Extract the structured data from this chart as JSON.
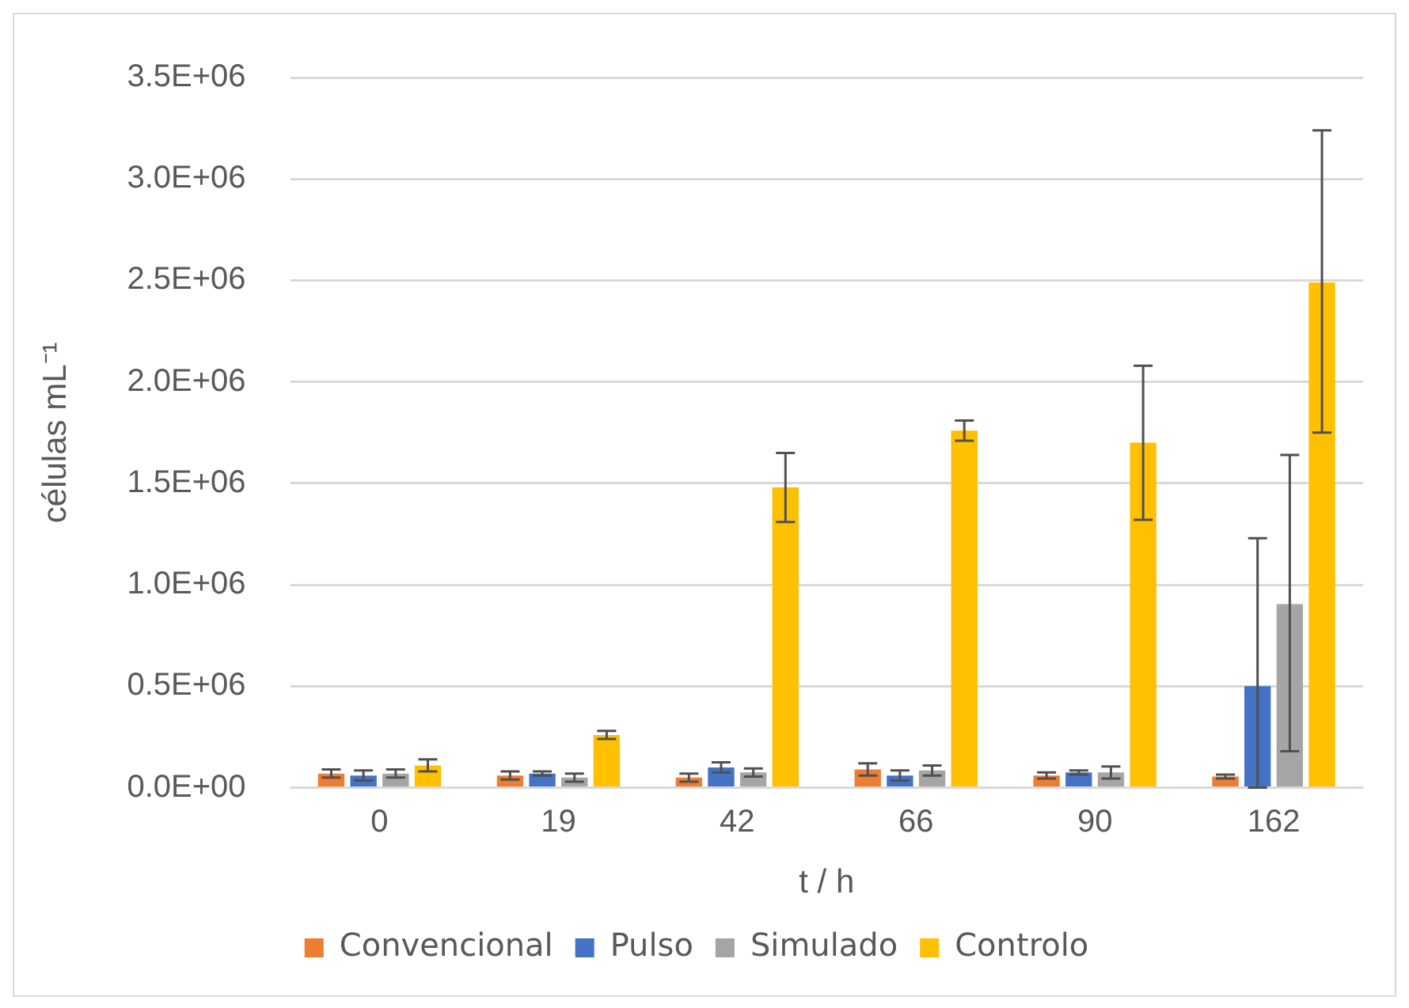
{
  "chart_data": {
    "type": "bar",
    "xlabel": "t / h",
    "ylabel": "células mL⁻¹",
    "categories": [
      "0",
      "19",
      "42",
      "66",
      "90",
      "162"
    ],
    "ylim": [
      0,
      3500000
    ],
    "yticks": [
      {
        "value": 0,
        "label": "0.0E+00"
      },
      {
        "value": 500000,
        "label": "0.5E+06"
      },
      {
        "value": 1000000,
        "label": "1.0E+06"
      },
      {
        "value": 1500000,
        "label": "1.5E+06"
      },
      {
        "value": 2000000,
        "label": "2.0E+06"
      },
      {
        "value": 2500000,
        "label": "2.5E+06"
      },
      {
        "value": 3000000,
        "label": "3.0E+06"
      },
      {
        "value": 3500000,
        "label": "3.5E+06"
      }
    ],
    "grid": "y",
    "legend": "bottom",
    "series": [
      {
        "name": "Convencional",
        "color": "#ed7d31",
        "values": [
          70000,
          60000,
          50000,
          90000,
          60000,
          55000
        ],
        "errors": [
          [
            50000,
            90000
          ],
          [
            40000,
            80000
          ],
          [
            30000,
            70000
          ],
          [
            60000,
            120000
          ],
          [
            45000,
            75000
          ],
          [
            45000,
            65000
          ]
        ]
      },
      {
        "name": "Pulso",
        "color": "#4472c4",
        "values": [
          60000,
          70000,
          100000,
          60000,
          75000,
          500000
        ],
        "errors": [
          [
            35000,
            85000
          ],
          [
            60000,
            80000
          ],
          [
            75000,
            125000
          ],
          [
            35000,
            85000
          ],
          [
            65000,
            85000
          ],
          [
            0,
            1230000
          ]
        ]
      },
      {
        "name": "Simulado",
        "color": "#a5a5a5",
        "values": [
          70000,
          50000,
          75000,
          85000,
          75000,
          905000
        ],
        "errors": [
          [
            50000,
            90000
          ],
          [
            30000,
            70000
          ],
          [
            55000,
            95000
          ],
          [
            60000,
            110000
          ],
          [
            45000,
            105000
          ],
          [
            180000,
            1640000
          ]
        ]
      },
      {
        "name": "Controlo",
        "color": "#ffc000",
        "values": [
          110000,
          260000,
          1480000,
          1760000,
          1700000,
          2490000
        ],
        "errors": [
          [
            80000,
            140000
          ],
          [
            240000,
            280000
          ],
          [
            1310000,
            1650000
          ],
          [
            1710000,
            1810000
          ],
          [
            1320000,
            2080000
          ],
          [
            1750000,
            3240000
          ]
        ]
      }
    ]
  }
}
